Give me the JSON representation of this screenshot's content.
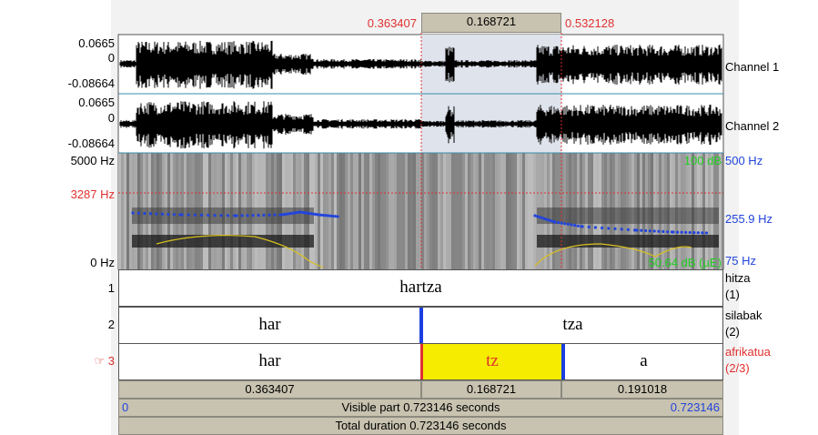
{
  "top_bar": {
    "selection_start": "0.363407",
    "selection_length": "0.168721",
    "selection_end": "0.532128"
  },
  "channels": [
    {
      "max": "0.0665",
      "zero": "0",
      "min": "-0.08664",
      "name": "Channel 1"
    },
    {
      "max": "0.0665",
      "zero": "0",
      "min": "-0.08664",
      "name": "Channel 2"
    }
  ],
  "spectrogram": {
    "top": "5000 Hz",
    "cursor": "3287 Hz",
    "bottom": "0 Hz",
    "intensity_top": "100 dB",
    "intensity_bottom": "50.64 dB (µE)",
    "pitch_top": "500 Hz",
    "pitch_cursor": "255.9 Hz",
    "pitch_bottom": "75 Hz"
  },
  "tiers": [
    {
      "number": "1",
      "intervals": [
        "hartza"
      ],
      "name": "hitza",
      "count": "(1)"
    },
    {
      "number": "2",
      "intervals": [
        "har",
        "tza"
      ],
      "name": "silabak",
      "count": "(2)"
    },
    {
      "number": "☞ 3",
      "intervals": [
        "har",
        "tz",
        "a"
      ],
      "name": "afrikatua",
      "count": "(2/3)"
    }
  ],
  "bottom": {
    "durations": [
      "0.363407",
      "0.168721",
      "0.191018"
    ],
    "visible_start": "0",
    "visible": "Visible part 0.723146 seconds",
    "visible_end": "0.723146",
    "total": "Total duration 0.723146 seconds"
  }
}
